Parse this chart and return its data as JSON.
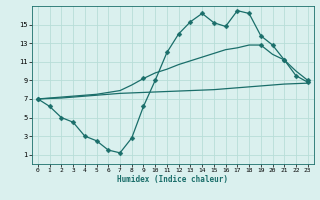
{
  "xlabel": "Humidex (Indice chaleur)",
  "background_color": "#daf0ee",
  "line_color": "#1a6e6a",
  "grid_color": "#b8ddd8",
  "x_values": [
    0,
    1,
    2,
    3,
    4,
    5,
    6,
    7,
    8,
    9,
    10,
    11,
    12,
    13,
    14,
    15,
    16,
    17,
    18,
    19,
    20,
    21,
    22,
    23
  ],
  "line1_y": [
    7.0,
    6.2,
    5.0,
    4.5,
    3.0,
    2.5,
    1.5,
    1.2,
    2.8,
    6.2,
    9.0,
    12.0,
    14.0,
    15.3,
    16.2,
    15.2,
    14.8,
    16.5,
    16.2,
    13.8,
    12.8,
    11.2,
    9.5,
    8.8
  ],
  "line2_y": [
    7.0,
    null,
    null,
    null,
    null,
    null,
    null,
    null,
    null,
    9.2,
    null,
    null,
    null,
    null,
    null,
    null,
    null,
    null,
    null,
    12.8,
    null,
    11.2,
    null,
    9.0
  ],
  "line2_full": [
    7.0,
    7.1,
    7.2,
    7.3,
    7.4,
    7.5,
    7.7,
    7.9,
    8.5,
    9.2,
    9.8,
    10.2,
    10.7,
    11.1,
    11.5,
    11.9,
    12.3,
    12.5,
    12.8,
    12.8,
    11.8,
    11.2,
    10.0,
    9.0
  ],
  "line3_y": [
    7.0,
    7.05,
    7.1,
    7.2,
    7.3,
    7.4,
    7.5,
    7.6,
    7.65,
    7.7,
    7.75,
    7.8,
    7.85,
    7.9,
    7.95,
    8.0,
    8.1,
    8.2,
    8.3,
    8.4,
    8.5,
    8.6,
    8.65,
    8.7
  ],
  "xlim": [
    -0.5,
    23.5
  ],
  "ylim": [
    0,
    17
  ],
  "yticks": [
    1,
    3,
    5,
    7,
    9,
    11,
    13,
    15
  ],
  "xticks": [
    0,
    1,
    2,
    3,
    4,
    5,
    6,
    7,
    8,
    9,
    10,
    11,
    12,
    13,
    14,
    15,
    16,
    17,
    18,
    19,
    20,
    21,
    22,
    23
  ],
  "marker_size": 2.5,
  "linewidth": 0.9
}
